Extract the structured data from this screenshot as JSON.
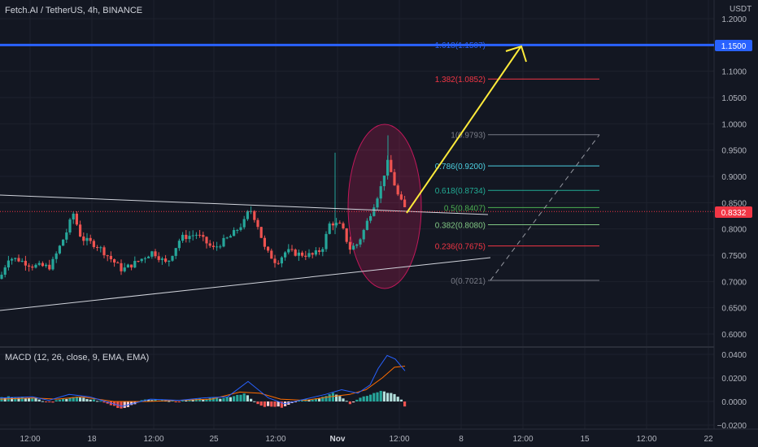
{
  "header": {
    "title": "Fetch.AI / TetherUS, 4h, BINANCE",
    "currency": "USDT"
  },
  "price_axis": {
    "ticks": [
      "1.2000",
      "1.1500",
      "1.1000",
      "1.0500",
      "1.0000",
      "0.9500",
      "0.9000",
      "0.8500",
      "0.8000",
      "0.7500",
      "0.7000",
      "0.6500",
      "0.6000"
    ],
    "tick_values": [
      1.2,
      1.15,
      1.1,
      1.05,
      1.0,
      0.95,
      0.9,
      0.85,
      0.8,
      0.75,
      0.7,
      0.65,
      0.6
    ]
  },
  "target_badge": {
    "label": "1.1500",
    "value": 1.15,
    "color": "#2962ff"
  },
  "current_badge": {
    "label": "0.8332",
    "value": 0.8332,
    "color": "#f23645"
  },
  "fib_levels": [
    {
      "label": "1.618(1.1507)",
      "value": 1.1507,
      "color": "#2962ff"
    },
    {
      "label": "1.382(1.0852)",
      "value": 1.0852,
      "color": "#f23645"
    },
    {
      "label": "1(0.9793)",
      "value": 0.9793,
      "color": "#787b86"
    },
    {
      "label": "0.786(0.9200)",
      "value": 0.92,
      "color": "#4dd0e1"
    },
    {
      "label": "0.618(0.8734)",
      "value": 0.8734,
      "color": "#22ab94"
    },
    {
      "label": "0.5(0.8407)",
      "value": 0.8407,
      "color": "#4caf50"
    },
    {
      "label": "0.382(0.8080)",
      "value": 0.808,
      "color": "#81c784"
    },
    {
      "label": "0.236(0.7675)",
      "value": 0.7675,
      "color": "#f23645"
    },
    {
      "label": "0(0.7021)",
      "value": 0.7021,
      "color": "#787b86"
    }
  ],
  "macd": {
    "title": "MACD (12, 26, close, 9, EMA, EMA)",
    "ticks": [
      "0.0400",
      "0.0200",
      "0.0000",
      "−0.0200"
    ],
    "tick_values": [
      0.04,
      0.02,
      0.0,
      -0.02
    ]
  },
  "time_axis": {
    "labels": [
      "12:00",
      "18",
      "12:00",
      "25",
      "12:00",
      "Nov",
      "12:00",
      "8",
      "12:00",
      "15",
      "12:00",
      "22"
    ]
  }
}
